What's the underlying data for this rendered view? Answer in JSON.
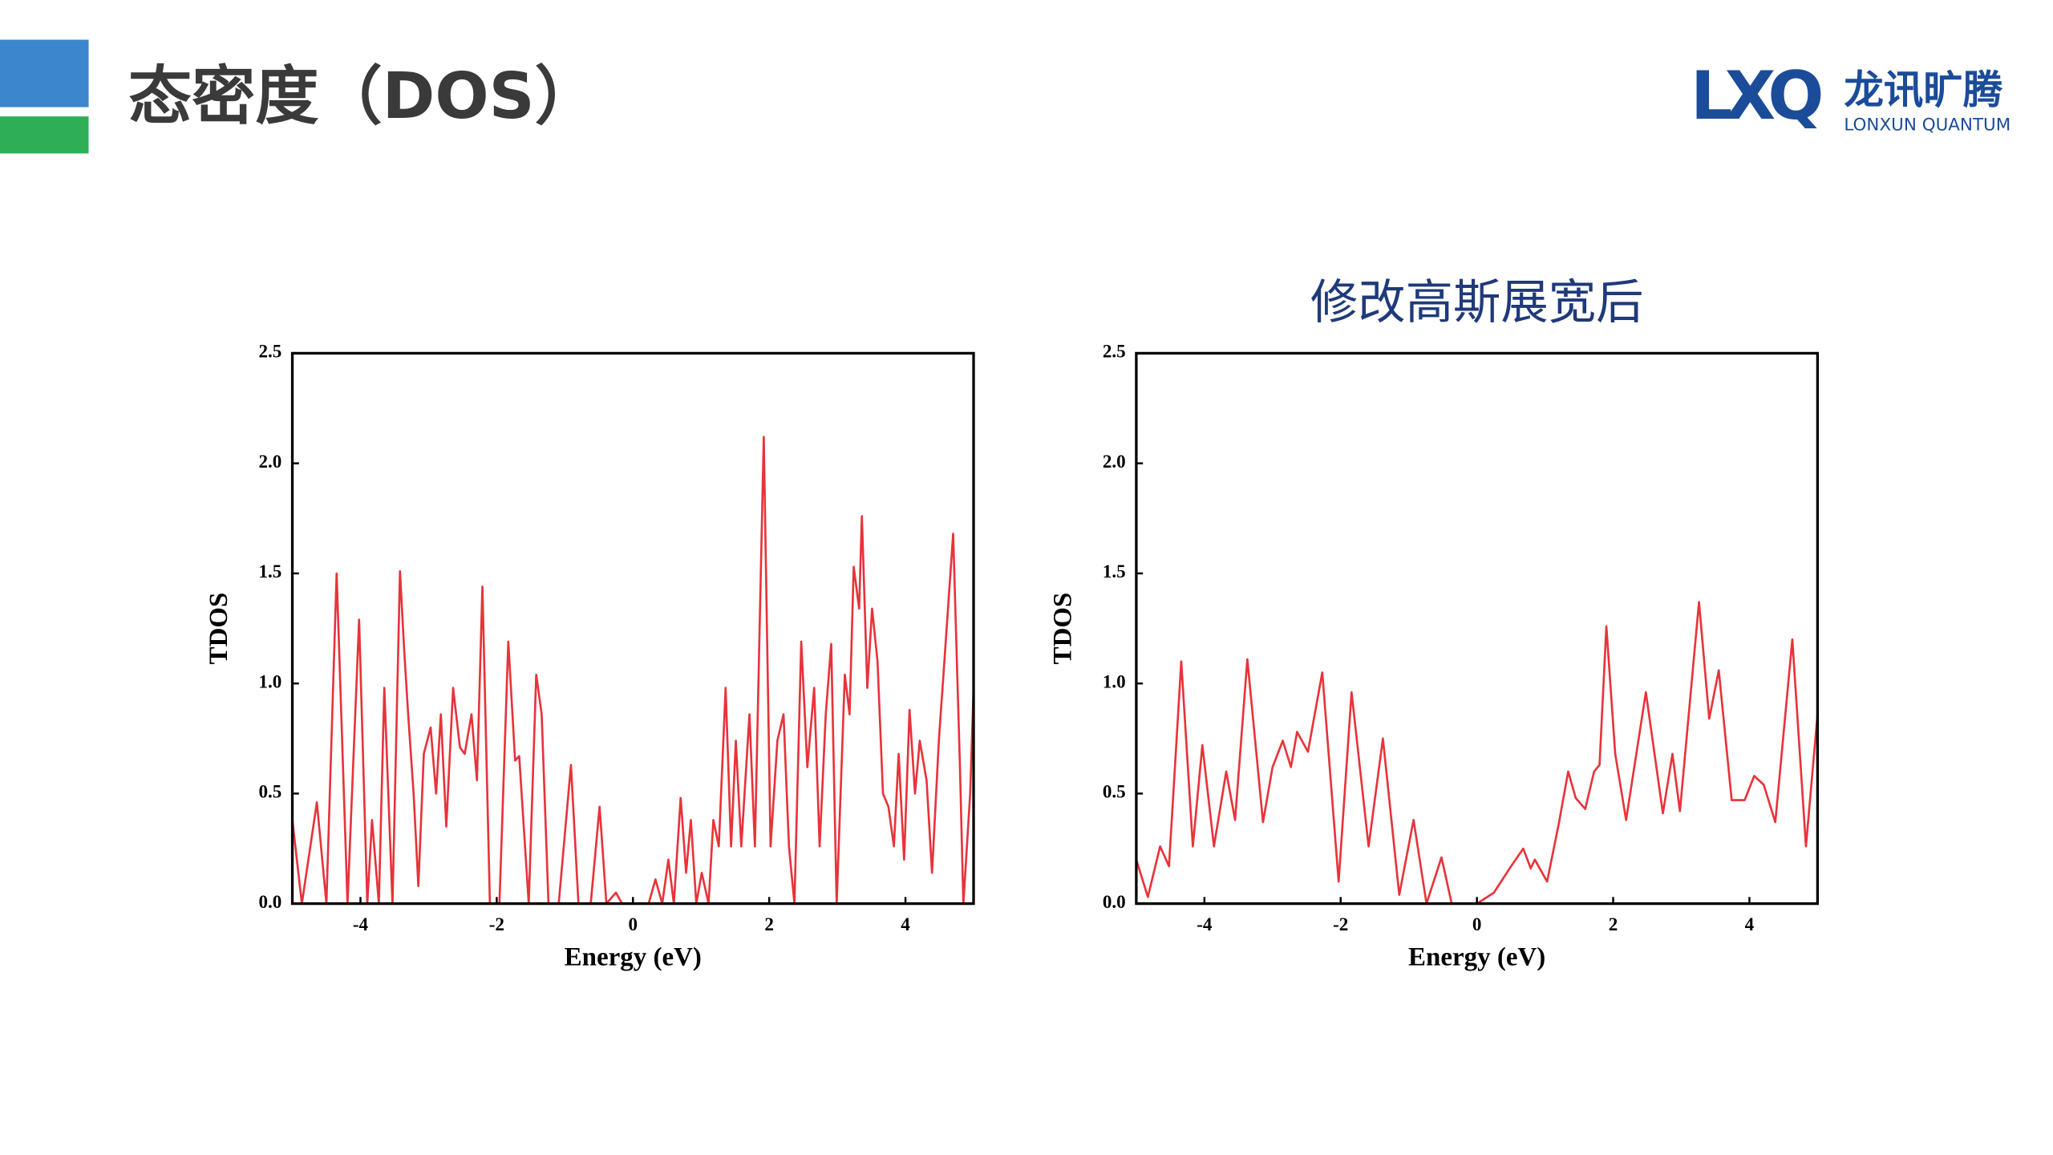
{
  "header": {
    "title": "态密度（DOS）"
  },
  "logo": {
    "mark": "LXQ",
    "name": "龙讯旷腾",
    "subtitle": "LONXUN QUANTUM"
  },
  "chart_data": [
    {
      "type": "line",
      "x_label": "Energy (eV)",
      "y_label": "TDOS",
      "color": "#e8333a",
      "xlim": [
        -5,
        5
      ],
      "ylim": [
        0,
        2.5
      ],
      "xticks": [
        -4,
        -2,
        0,
        2,
        4
      ],
      "yticks": [
        {
          "value": 0,
          "label": "0.0"
        },
        0.5,
        {
          "value": 1,
          "label": "1.0"
        },
        1.5,
        {
          "value": 2,
          "label": "2.0"
        },
        2.5
      ],
      "x": [
        -5,
        -4.86,
        -4.64,
        -4.5,
        -4.35,
        -4.19,
        -4.02,
        -3.9,
        -3.83,
        -3.73,
        -3.65,
        -3.53,
        -3.42,
        -3.36,
        -3.3,
        -3.22,
        -3.15,
        -3.07,
        -2.97,
        -2.89,
        -2.82,
        -2.74,
        -2.64,
        -2.54,
        -2.47,
        -2.37,
        -2.29,
        -2.21,
        -2.1,
        -1.96,
        -1.83,
        -1.73,
        -1.67,
        -1.53,
        -1.42,
        -1.34,
        -1.24,
        -1.09,
        -0.91,
        -0.8,
        -0.62,
        -0.49,
        -0.39,
        -0.25,
        -0.16,
        0.23,
        0.33,
        0.43,
        0.52,
        0.6,
        0.7,
        0.78,
        0.85,
        0.93,
        1.01,
        1.11,
        1.18,
        1.26,
        1.36,
        1.44,
        1.51,
        1.59,
        1.71,
        1.79,
        1.92,
        2.02,
        2.12,
        2.21,
        2.29,
        2.37,
        2.47,
        2.56,
        2.66,
        2.74,
        2.83,
        2.91,
        2.99,
        3.11,
        3.18,
        3.24,
        3.32,
        3.36,
        3.44,
        3.51,
        3.59,
        3.67,
        3.75,
        3.83,
        3.9,
        3.98,
        4.06,
        4.14,
        4.21,
        4.31,
        4.39,
        4.49,
        4.58,
        4.7,
        4.8,
        4.85,
        4.95,
        5
      ],
      "values": [
        0.38,
        0,
        0.46,
        0,
        1.5,
        0,
        1.29,
        0,
        0.38,
        0,
        0.98,
        0,
        1.51,
        1.16,
        0.86,
        0.5,
        0.08,
        0.68,
        0.8,
        0.5,
        0.86,
        0.35,
        0.98,
        0.71,
        0.68,
        0.86,
        0.56,
        1.44,
        0,
        0,
        1.19,
        0.65,
        0.67,
        0,
        1.04,
        0.86,
        0,
        0,
        0.63,
        0,
        0,
        0.44,
        0,
        0.05,
        0,
        0,
        0.11,
        0,
        0.2,
        0,
        0.48,
        0.14,
        0.38,
        0,
        0.14,
        0,
        0.38,
        0.26,
        0.98,
        0.26,
        0.74,
        0.26,
        0.86,
        0.26,
        2.12,
        0.26,
        0.74,
        0.86,
        0.26,
        0,
        1.19,
        0.62,
        0.98,
        0.26,
        0.86,
        1.18,
        0,
        1.04,
        0.86,
        1.53,
        1.34,
        1.76,
        0.98,
        1.34,
        1.1,
        0.5,
        0.44,
        0.26,
        0.68,
        0.2,
        0.88,
        0.5,
        0.74,
        0.56,
        0.14,
        0.74,
        1.14,
        1.68,
        0.62,
        0,
        0.5,
        0.98
      ]
    },
    {
      "type": "line",
      "title": "修改高斯展宽后",
      "x_label": "Energy (eV)",
      "y_label": "TDOS",
      "color": "#e8333a",
      "xlim": [
        -5,
        5
      ],
      "ylim": [
        0,
        2.5
      ],
      "xticks": [
        -4,
        -2,
        0,
        2,
        4
      ],
      "yticks": [
        {
          "value": 0,
          "label": "0.0"
        },
        0.5,
        {
          "value": 1,
          "label": "1.0"
        },
        1.5,
        {
          "value": 2,
          "label": "2.0"
        },
        2.5
      ],
      "x": [
        -5,
        -4.83,
        -4.65,
        -4.52,
        -4.34,
        -4.17,
        -4.03,
        -3.86,
        -3.68,
        -3.55,
        -3.37,
        -3.14,
        -3.0,
        -2.85,
        -2.73,
        -2.64,
        -2.48,
        -2.27,
        -2.03,
        -1.84,
        -1.59,
        -1.38,
        -1.14,
        -0.93,
        -0.74,
        -0.52,
        -0.37,
        0,
        0.25,
        0.48,
        0.68,
        0.79,
        0.85,
        1.03,
        1.2,
        1.34,
        1.45,
        1.59,
        1.72,
        1.8,
        1.9,
        2.03,
        2.19,
        2.48,
        2.73,
        2.87,
        2.98,
        3.26,
        3.41,
        3.55,
        3.74,
        3.93,
        4.07,
        4.21,
        4.38,
        4.63,
        4.83,
        5
      ],
      "values": [
        0.2,
        0.03,
        0.26,
        0.17,
        1.1,
        0.26,
        0.72,
        0.26,
        0.6,
        0.38,
        1.11,
        0.37,
        0.62,
        0.74,
        0.62,
        0.78,
        0.69,
        1.05,
        0.1,
        0.96,
        0.26,
        0.75,
        0.04,
        0.38,
        0,
        0.21,
        0,
        0,
        0.05,
        0.16,
        0.25,
        0.16,
        0.2,
        0.1,
        0.36,
        0.6,
        0.48,
        0.43,
        0.6,
        0.63,
        1.26,
        0.68,
        0.38,
        0.96,
        0.41,
        0.68,
        0.42,
        1.37,
        0.84,
        1.06,
        0.47,
        0.47,
        0.58,
        0.54,
        0.37,
        1.2,
        0.26,
        0.86
      ]
    }
  ]
}
